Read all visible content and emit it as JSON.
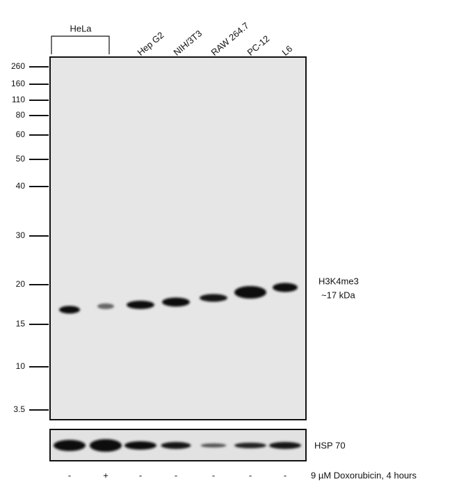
{
  "lane_labels": {
    "group": "HeLa",
    "lanes": [
      "Hep G2",
      "NIH/3T3",
      "RAW 264.7",
      "PC-12",
      "L6"
    ]
  },
  "markers": [
    "260",
    "160",
    "110",
    "80",
    "60",
    "50",
    "40",
    "30",
    "20",
    "15",
    "10",
    "3.5"
  ],
  "target": {
    "name": "H3K4me3",
    "size": "~17 kDa"
  },
  "loading_control": "HSP 70",
  "treatment": {
    "signs": [
      "-",
      "+",
      "-",
      "-",
      "-",
      "-",
      "-"
    ],
    "label": "9 µM Doxorubicin, 4 hours"
  }
}
